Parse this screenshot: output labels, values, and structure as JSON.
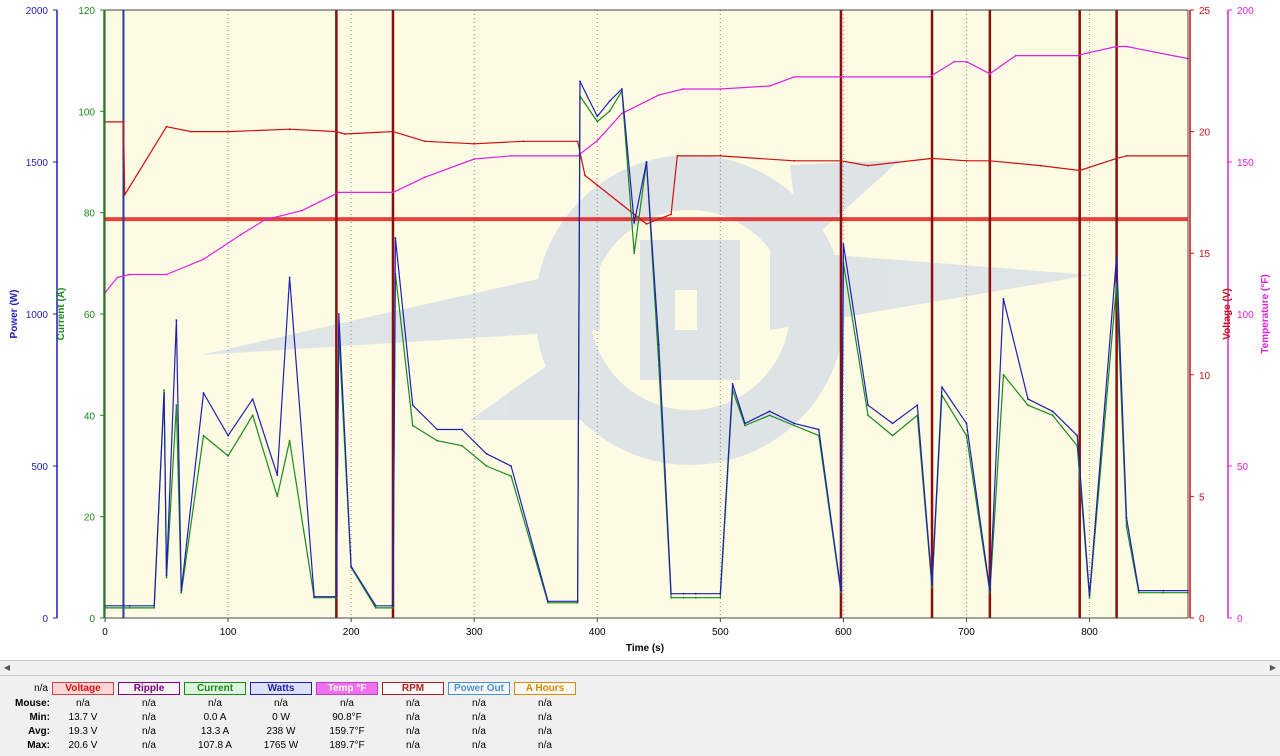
{
  "chart_data": {
    "type": "line",
    "xlabel": "Time (s)",
    "xlim": [
      0,
      880
    ],
    "x_ticks": [
      0,
      100,
      200,
      300,
      400,
      500,
      600,
      700,
      800
    ],
    "axes": {
      "power": {
        "label": "Power (W)",
        "range": [
          0,
          2000
        ],
        "ticks": [
          0,
          500,
          1000,
          1500,
          2000
        ],
        "color": "#1f1fb4",
        "side": "left"
      },
      "current": {
        "label": "Current (A)",
        "range": [
          0,
          120
        ],
        "ticks": [
          0,
          20,
          40,
          60,
          80,
          100,
          120
        ],
        "color": "#1a8a1a",
        "side": "left"
      },
      "voltage": {
        "label": "Voltage (V)",
        "range": [
          0,
          25
        ],
        "ticks": [
          0,
          5,
          10,
          15,
          20,
          25
        ],
        "color": "#d01010",
        "side": "right"
      },
      "temperature": {
        "label": "Temperature (°F)",
        "range": [
          0,
          200
        ],
        "ticks": [
          0,
          50,
          100,
          150,
          200
        ],
        "color": "#e020e0",
        "side": "right"
      }
    },
    "grid": {
      "vertical_dotted": true,
      "at_x": [
        100,
        200,
        300,
        400,
        500,
        600,
        700,
        800
      ]
    },
    "background": "#fdfbe3",
    "reference_line": {
      "axis": "voltage",
      "value": 16.4,
      "color": "#e02020"
    },
    "event_markers_x": [
      15,
      188,
      234,
      598,
      672,
      719,
      792,
      822
    ],
    "series": [
      {
        "name": "Voltage",
        "axis": "voltage",
        "color": "#d01010",
        "x": [
          0,
          15,
          16,
          50,
          70,
          100,
          150,
          188,
          195,
          234,
          260,
          300,
          340,
          384,
          390,
          400,
          420,
          440,
          460,
          465,
          500,
          560,
          598,
          620,
          672,
          700,
          719,
          760,
          792,
          822,
          830,
          880
        ],
        "y": [
          20.4,
          20.4,
          17.4,
          20.2,
          20.0,
          20.0,
          20.1,
          20.0,
          19.9,
          20.0,
          19.6,
          19.5,
          19.6,
          19.6,
          18.2,
          17.8,
          17.0,
          16.2,
          16.6,
          19.0,
          19.0,
          18.8,
          18.8,
          18.6,
          18.9,
          18.8,
          18.8,
          18.6,
          18.4,
          18.9,
          19.0,
          19.0
        ]
      },
      {
        "name": "Temp °F",
        "axis": "temperature",
        "color": "#e020e0",
        "x": [
          0,
          10,
          20,
          50,
          80,
          110,
          130,
          160,
          190,
          234,
          260,
          300,
          330,
          384,
          400,
          420,
          450,
          470,
          500,
          540,
          560,
          600,
          670,
          690,
          700,
          719,
          740,
          790,
          800,
          822,
          830,
          880
        ],
        "y": [
          107,
          112,
          113,
          113,
          118,
          126,
          131,
          134,
          140,
          140,
          145,
          151,
          152,
          152,
          157,
          166,
          172,
          174,
          174,
          175,
          178,
          178,
          178,
          183,
          183,
          179,
          185,
          185,
          186,
          188,
          188,
          184
        ]
      },
      {
        "name": "Current",
        "axis": "current",
        "color": "#1a8a1a",
        "x": [
          0,
          20,
          40,
          48,
          50,
          58,
          62,
          80,
          100,
          120,
          140,
          150,
          170,
          188,
          190,
          200,
          220,
          234,
          236,
          250,
          270,
          290,
          310,
          330,
          360,
          384,
          386,
          400,
          410,
          420,
          430,
          440,
          450,
          460,
          470,
          480,
          500,
          510,
          520,
          540,
          560,
          580,
          598,
          600,
          620,
          640,
          660,
          672,
          680,
          700,
          719,
          730,
          750,
          770,
          790,
          800,
          822,
          830,
          840,
          860,
          880
        ],
        "y": [
          2,
          2,
          2,
          45,
          8,
          42,
          5,
          36,
          32,
          40,
          24,
          35,
          4,
          4,
          56,
          10,
          2,
          2,
          68,
          38,
          35,
          34,
          30,
          28,
          3,
          3,
          103,
          98,
          100,
          104,
          72,
          90,
          50,
          4,
          4,
          4,
          4,
          45,
          38,
          40,
          38,
          36,
          5,
          70,
          40,
          36,
          40,
          6,
          44,
          36,
          5,
          48,
          42,
          40,
          34,
          4,
          66,
          18,
          5,
          5,
          5
        ]
      },
      {
        "name": "Watts",
        "axis": "power",
        "color": "#1f1fb4",
        "x": [
          0,
          20,
          40,
          48,
          50,
          58,
          62,
          80,
          100,
          120,
          140,
          150,
          170,
          188,
          190,
          200,
          220,
          234,
          236,
          250,
          270,
          290,
          310,
          330,
          360,
          384,
          386,
          400,
          410,
          420,
          430,
          440,
          450,
          460,
          470,
          480,
          500,
          510,
          520,
          540,
          560,
          580,
          598,
          600,
          620,
          640,
          660,
          672,
          680,
          700,
          719,
          730,
          750,
          770,
          790,
          800,
          822,
          830,
          840,
          860,
          880
        ],
        "y": [
          40,
          40,
          40,
          740,
          140,
          980,
          90,
          740,
          600,
          720,
          470,
          1120,
          70,
          70,
          1000,
          170,
          40,
          40,
          1250,
          700,
          620,
          620,
          540,
          500,
          55,
          55,
          1765,
          1650,
          1700,
          1740,
          1300,
          1500,
          900,
          80,
          80,
          80,
          80,
          770,
          640,
          680,
          640,
          620,
          90,
          1230,
          700,
          640,
          700,
          110,
          760,
          640,
          90,
          1050,
          720,
          680,
          600,
          75,
          1190,
          330,
          90,
          90,
          90
        ]
      }
    ]
  },
  "stats": {
    "na_header": "n/a",
    "columns": [
      {
        "label": "Voltage",
        "text_color": "#e01010",
        "bg": "#ffd6d6",
        "border": "#cc4444"
      },
      {
        "label": "Ripple",
        "text_color": "#800080",
        "bg": "#f4f4f4",
        "border": "#800080"
      },
      {
        "label": "Current",
        "text_color": "#1a8a1a",
        "bg": "#ddf5dd",
        "border": "#1a8a1a"
      },
      {
        "label": "Watts",
        "text_color": "#1f1fb4",
        "bg": "#dde0fb",
        "border": "#1f1fb4"
      },
      {
        "label": "Temp °F",
        "text_color": "#ffffff",
        "bg": "#f070f0",
        "border": "#c040c0"
      },
      {
        "label": "RPM",
        "text_color": "#b02020",
        "bg": "#f8f8f8",
        "border": "#b02020"
      },
      {
        "label": "Power Out",
        "text_color": "#4a90d9",
        "bg": "#f8f8f8",
        "border": "#4a90d9"
      },
      {
        "label": "A Hours",
        "text_color": "#e08a00",
        "bg": "#f8f8f8",
        "border": "#e08a00"
      }
    ],
    "rows": [
      {
        "label": "Mouse:",
        "values": [
          "n/a",
          "n/a",
          "n/a",
          "n/a",
          "n/a",
          "n/a",
          "n/a",
          "n/a"
        ]
      },
      {
        "label": "Min:",
        "values": [
          "13.7 V",
          "n/a",
          "0.0 A",
          "0 W",
          "90.8°F",
          "n/a",
          "n/a",
          "n/a"
        ]
      },
      {
        "label": "Avg:",
        "values": [
          "19.3 V",
          "n/a",
          "13.3 A",
          "238 W",
          "159.7°F",
          "n/a",
          "n/a",
          "n/a"
        ]
      },
      {
        "label": "Max:",
        "values": [
          "20.6 V",
          "n/a",
          "107.8 A",
          "1765 W",
          "189.7°F",
          "n/a",
          "n/a",
          "n/a"
        ]
      }
    ]
  }
}
